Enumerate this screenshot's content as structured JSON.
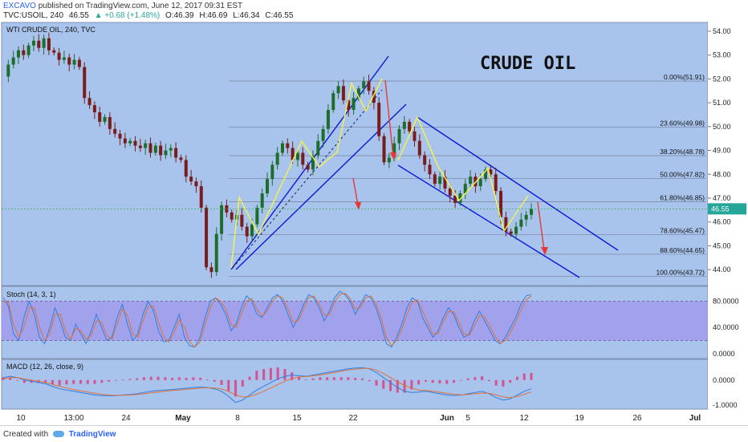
{
  "header": {
    "author": "EXCAVO",
    "published": "published on TradingView.com, June 12, 2017 09:31 EST",
    "symbol": "TVC:USOIL, 240",
    "last": "46.55",
    "change": "▲ +0.68 (+1.48%)",
    "open": "O:46.39",
    "high": "H:46.69",
    "low": "L:46.34",
    "close": "C:46.55"
  },
  "footer": {
    "created": "Created with",
    "brand": "TradingView"
  },
  "colors": {
    "panel_bg": "#a9c4ec",
    "stoch_band": "#a097ec",
    "channel": "#0a1ad8",
    "zigzag": "#f4f44a",
    "arrow": "#e53935",
    "up_candle": "#1d6e2c",
    "down_candle": "#7a1c1c"
  },
  "chart_data": [
    {
      "type": "candlestick",
      "title": "WTI CRUDE OIL, 240, TVC",
      "annotation": "CRUDE OIL",
      "x_ticks": [
        "10",
        "13:00",
        "24",
        "May",
        "8",
        "15",
        "22",
        "Jun",
        "5",
        "12",
        "19",
        "26",
        "Jul"
      ],
      "y_ticks": [
        44.0,
        45.0,
        46.0,
        47.0,
        48.0,
        49.0,
        50.0,
        51.0,
        52.0,
        53.0,
        54.0
      ],
      "ylim": [
        43.4,
        54.3
      ],
      "current_price": 46.55,
      "current_price_label": "46.55",
      "price_path": [
        52.1,
        52.6,
        52.9,
        53.2,
        53.0,
        53.4,
        53.6,
        53.3,
        53.7,
        53.2,
        53.1,
        52.8,
        52.9,
        52.6,
        52.8,
        52.5,
        51.2,
        50.9,
        50.6,
        50.2,
        50.4,
        49.9,
        49.7,
        49.5,
        49.3,
        49.4,
        49.2,
        49.1,
        49.3,
        48.9,
        49.2,
        48.8,
        49.0,
        49.1,
        48.7,
        48.6,
        47.9,
        47.7,
        47.5,
        46.6,
        44.1,
        43.9,
        45.5,
        46.7,
        46.4,
        46.1,
        46.3,
        45.8,
        45.4,
        45.9,
        46.6,
        47.2,
        47.8,
        48.4,
        48.9,
        49.3,
        49.1,
        48.6,
        48.9,
        48.4,
        48.2,
        48.8,
        49.4,
        49.9,
        50.7,
        51.4,
        51.7,
        51.1,
        50.7,
        51.2,
        51.6,
        51.9,
        51.5,
        51.0,
        49.6,
        48.5,
        48.7,
        49.3,
        49.9,
        50.2,
        49.8,
        49.4,
        48.8,
        48.4,
        48.0,
        47.6,
        47.9,
        47.4,
        47.1,
        46.8,
        47.2,
        47.6,
        47.9,
        47.5,
        47.8,
        48.2,
        48.0,
        47.3,
        46.2,
        45.6,
        45.5,
        45.8,
        46.1,
        46.3,
        46.55
      ],
      "fib_levels": [
        {
          "label": "0.00%(51.91)",
          "value": 51.91
        },
        {
          "label": "23.60%(49.98)",
          "value": 49.98
        },
        {
          "label": "38.20%(48.78)",
          "value": 48.78
        },
        {
          "label": "50.00%(47.82)",
          "value": 47.82
        },
        {
          "label": "61.80%(46.85)",
          "value": 46.85
        },
        {
          "label": "78.60%(45.47)",
          "value": 45.47
        },
        {
          "label": "88.60%(44.65)",
          "value": 44.65
        },
        {
          "label": "100.00%(43.72)",
          "value": 43.72
        }
      ]
    },
    {
      "type": "line",
      "title": "Stoch (14, 3, 1)",
      "y_ticks": [
        0.0,
        40.0,
        80.0
      ],
      "y_tick_labels": [
        "0.0000",
        "40.0000",
        "80.0000"
      ],
      "ylim": [
        -5,
        100
      ],
      "bands": [
        20,
        80
      ],
      "series": [
        {
          "color": "#2f7fe0",
          "values": [
            85,
            72,
            30,
            20,
            55,
            80,
            60,
            25,
            15,
            40,
            70,
            50,
            25,
            20,
            45,
            30,
            15,
            35,
            60,
            40,
            20,
            25,
            55,
            75,
            45,
            20,
            30,
            60,
            80,
            65,
            35,
            18,
            20,
            40,
            60,
            25,
            12,
            10,
            25,
            55,
            80,
            85,
            75,
            60,
            35,
            45,
            70,
            88,
            80,
            60,
            55,
            70,
            85,
            90,
            80,
            60,
            40,
            55,
            75,
            90,
            85,
            70,
            50,
            65,
            85,
            95,
            90,
            80,
            60,
            75,
            90,
            85,
            70,
            45,
            15,
            10,
            25,
            45,
            70,
            85,
            80,
            55,
            40,
            25,
            35,
            55,
            70,
            60,
            40,
            25,
            30,
            50,
            65,
            50,
            35,
            20,
            15,
            25,
            40,
            55,
            75,
            88,
            90
          ]
        },
        {
          "color": "#e0703a",
          "values": [
            80,
            78,
            45,
            25,
            40,
            70,
            70,
            40,
            20,
            30,
            60,
            60,
            35,
            22,
            38,
            35,
            22,
            28,
            50,
            48,
            28,
            22,
            45,
            68,
            58,
            30,
            25,
            50,
            72,
            72,
            48,
            25,
            18,
            32,
            52,
            40,
            18,
            10,
            18,
            45,
            70,
            85,
            80,
            68,
            45,
            40,
            60,
            80,
            84,
            68,
            57,
            65,
            80,
            88,
            85,
            68,
            48,
            50,
            68,
            85,
            88,
            76,
            58,
            60,
            78,
            90,
            92,
            84,
            68,
            70,
            85,
            88,
            76,
            55,
            25,
            12,
            20,
            38,
            60,
            78,
            82,
            65,
            48,
            30,
            30,
            48,
            64,
            64,
            48,
            30,
            28,
            42,
            58,
            56,
            42,
            26,
            16,
            20,
            33,
            48,
            66,
            82,
            88
          ]
        }
      ]
    },
    {
      "type": "line",
      "title": "MACD (12, 26, close, 9)",
      "y_ticks": [
        0.0,
        -1.0
      ],
      "y_tick_labels": [
        "0.0000",
        "-1.0000"
      ],
      "ylim": [
        -1.1,
        0.7
      ],
      "series": [
        {
          "color": "#2f7fe0",
          "values": [
            0.1,
            0.15,
            0.1,
            0.0,
            -0.05,
            -0.1,
            -0.15,
            -0.25,
            -0.35,
            -0.4,
            -0.45,
            -0.5,
            -0.55,
            -0.6,
            -0.62,
            -0.63,
            -0.62,
            -0.6,
            -0.58,
            -0.55,
            -0.5,
            -0.45,
            -0.42,
            -0.4,
            -0.38,
            -0.35,
            -0.33,
            -0.3,
            -0.28,
            -0.3,
            -0.35,
            -0.45,
            -0.65,
            -0.9,
            -0.8,
            -0.6,
            -0.4,
            -0.25,
            -0.1,
            0.05,
            0.15,
            0.2,
            0.18,
            0.15,
            0.2,
            0.25,
            0.3,
            0.35,
            0.4,
            0.45,
            0.48,
            0.5,
            0.45,
            0.3,
            0.1,
            -0.1,
            -0.3,
            -0.45,
            -0.5,
            -0.48,
            -0.45,
            -0.5,
            -0.55,
            -0.6,
            -0.62,
            -0.6,
            -0.55,
            -0.5,
            -0.45,
            -0.55,
            -0.7,
            -0.8,
            -0.75,
            -0.6,
            -0.45,
            -0.35
          ]
        },
        {
          "color": "#e0703a",
          "values": [
            0.05,
            0.1,
            0.1,
            0.05,
            0.0,
            -0.05,
            -0.1,
            -0.17,
            -0.25,
            -0.32,
            -0.38,
            -0.43,
            -0.48,
            -0.53,
            -0.57,
            -0.6,
            -0.61,
            -0.61,
            -0.6,
            -0.58,
            -0.55,
            -0.51,
            -0.48,
            -0.45,
            -0.42,
            -0.4,
            -0.37,
            -0.35,
            -0.32,
            -0.31,
            -0.32,
            -0.36,
            -0.45,
            -0.6,
            -0.68,
            -0.66,
            -0.57,
            -0.45,
            -0.32,
            -0.18,
            -0.05,
            0.06,
            0.12,
            0.14,
            0.17,
            0.2,
            0.25,
            0.3,
            0.35,
            0.4,
            0.44,
            0.47,
            0.47,
            0.4,
            0.26,
            0.1,
            -0.07,
            -0.22,
            -0.33,
            -0.4,
            -0.42,
            -0.45,
            -0.49,
            -0.53,
            -0.57,
            -0.59,
            -0.58,
            -0.55,
            -0.52,
            -0.53,
            -0.6,
            -0.68,
            -0.7,
            -0.66,
            -0.57,
            -0.48
          ]
        }
      ]
    }
  ]
}
